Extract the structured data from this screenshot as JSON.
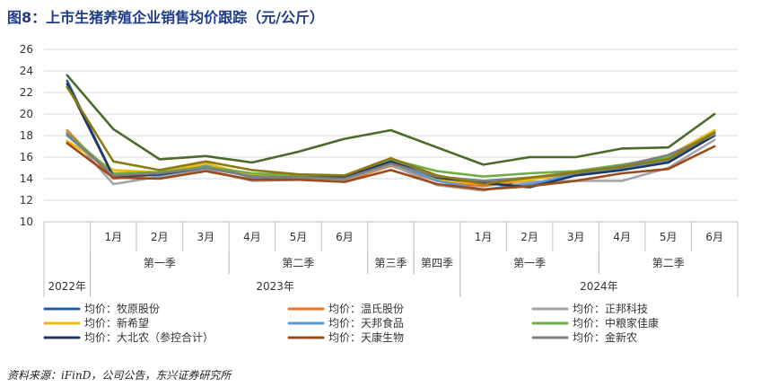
{
  "title": "图8：上市生猪养殖企业销售均价跟踪（元/公斤）",
  "source": "资料来源：iFinD，公司公告，东兴证券研究所",
  "chart_data": {
    "type": "line",
    "ylim": [
      10,
      26
    ],
    "yticks": [
      10,
      12,
      14,
      16,
      18,
      20,
      22,
      24,
      26
    ],
    "grid": true,
    "legend_position": "bottom",
    "categories": [
      "",
      "1月",
      "2月",
      "3月",
      "4月",
      "5月",
      "6月",
      "",
      "",
      "1月",
      "2月",
      "3月",
      "4月",
      "5月",
      "6月"
    ],
    "quarter_groups": [
      {
        "label": "",
        "start": 0,
        "span": 1
      },
      {
        "label": "第一季",
        "start": 1,
        "span": 3
      },
      {
        "label": "第二季",
        "start": 4,
        "span": 3
      },
      {
        "label": "第三季",
        "start": 7,
        "span": 1
      },
      {
        "label": "第四季",
        "start": 8,
        "span": 1
      },
      {
        "label": "第一季",
        "start": 9,
        "span": 3
      },
      {
        "label": "第二季",
        "start": 12,
        "span": 3
      }
    ],
    "year_groups": [
      {
        "label": "2022年",
        "start": 0,
        "span": 1
      },
      {
        "label": "2023年",
        "start": 1,
        "span": 8
      },
      {
        "label": "2024年",
        "start": 9,
        "span": 6
      }
    ],
    "series": [
      {
        "name": "均价：牧原股份",
        "color": "#2e5d9f",
        "values": [
          23.1,
          14.2,
          14.5,
          15.1,
          14.3,
          14.2,
          14.2,
          15.7,
          14.0,
          13.7,
          13.3,
          14.5,
          15.0,
          15.8,
          18.2
        ]
      },
      {
        "name": "均价：温氏股份",
        "color": "#e8762c",
        "values": [
          18.5,
          14.0,
          14.4,
          15.3,
          14.2,
          14.0,
          13.8,
          15.2,
          13.8,
          13.3,
          13.9,
          14.5,
          15.0,
          15.9,
          18.4
        ]
      },
      {
        "name": "均价：正邦科技",
        "color": "#a5a5a5",
        "values": [
          18.3,
          13.5,
          14.2,
          14.8,
          13.8,
          13.9,
          13.9,
          15.3,
          13.4,
          12.9,
          13.7,
          13.8,
          13.8,
          15.0,
          17.6
        ]
      },
      {
        "name": "均价：新希望",
        "color": "#f2b90f",
        "values": [
          17.5,
          14.8,
          14.6,
          15.4,
          14.3,
          14.2,
          14.1,
          15.7,
          13.9,
          13.5,
          13.9,
          14.6,
          15.2,
          16.1,
          18.5
        ]
      },
      {
        "name": "均价：天邦食品",
        "color": "#5b9bd5",
        "values": [
          18.0,
          14.4,
          14.3,
          15.2,
          14.1,
          14.0,
          14.2,
          15.5,
          13.8,
          13.0,
          13.5,
          14.4,
          15.0,
          15.6,
          18.0
        ]
      },
      {
        "name": "均价：中粮家佳康",
        "color": "#70ad47",
        "values": [
          18.2,
          14.5,
          14.6,
          15.1,
          14.5,
          14.3,
          14.2,
          15.8,
          14.7,
          14.2,
          14.5,
          14.7,
          15.3,
          16.0,
          18.3
        ]
      },
      {
        "name": "均价：大北农（参控合计）",
        "color": "#1f3864",
        "values": [
          22.8,
          14.2,
          14.4,
          15.0,
          14.2,
          14.1,
          14.1,
          15.6,
          14.1,
          13.6,
          13.2,
          14.3,
          14.8,
          15.5,
          18.0
        ]
      },
      {
        "name": "均价：天康生物",
        "color": "#9c4a1a",
        "values": [
          17.3,
          14.1,
          14.0,
          14.7,
          13.9,
          13.9,
          13.7,
          14.8,
          13.5,
          13.0,
          13.3,
          13.8,
          14.5,
          14.9,
          17.0
        ]
      },
      {
        "name": "均价：金新农",
        "color": "#7f7f7f",
        "values": [
          18.1,
          14.3,
          14.5,
          15.0,
          14.2,
          14.1,
          14.0,
          15.4,
          14.2,
          13.8,
          14.1,
          14.5,
          15.2,
          16.2,
          18.1
        ]
      },
      {
        "name": "",
        "color": "#4a6b2a",
        "values": [
          23.6,
          18.6,
          15.8,
          16.1,
          15.5,
          16.5,
          17.7,
          18.5,
          16.9,
          15.3,
          16.0,
          16.0,
          16.8,
          16.9,
          20.0
        ]
      },
      {
        "name": "",
        "color": "#8b7a10",
        "values": [
          22.5,
          15.6,
          14.8,
          15.6,
          14.8,
          14.4,
          14.3,
          15.9,
          14.3,
          13.5,
          14.1,
          14.6,
          15.1,
          15.8,
          18.3
        ]
      }
    ]
  }
}
